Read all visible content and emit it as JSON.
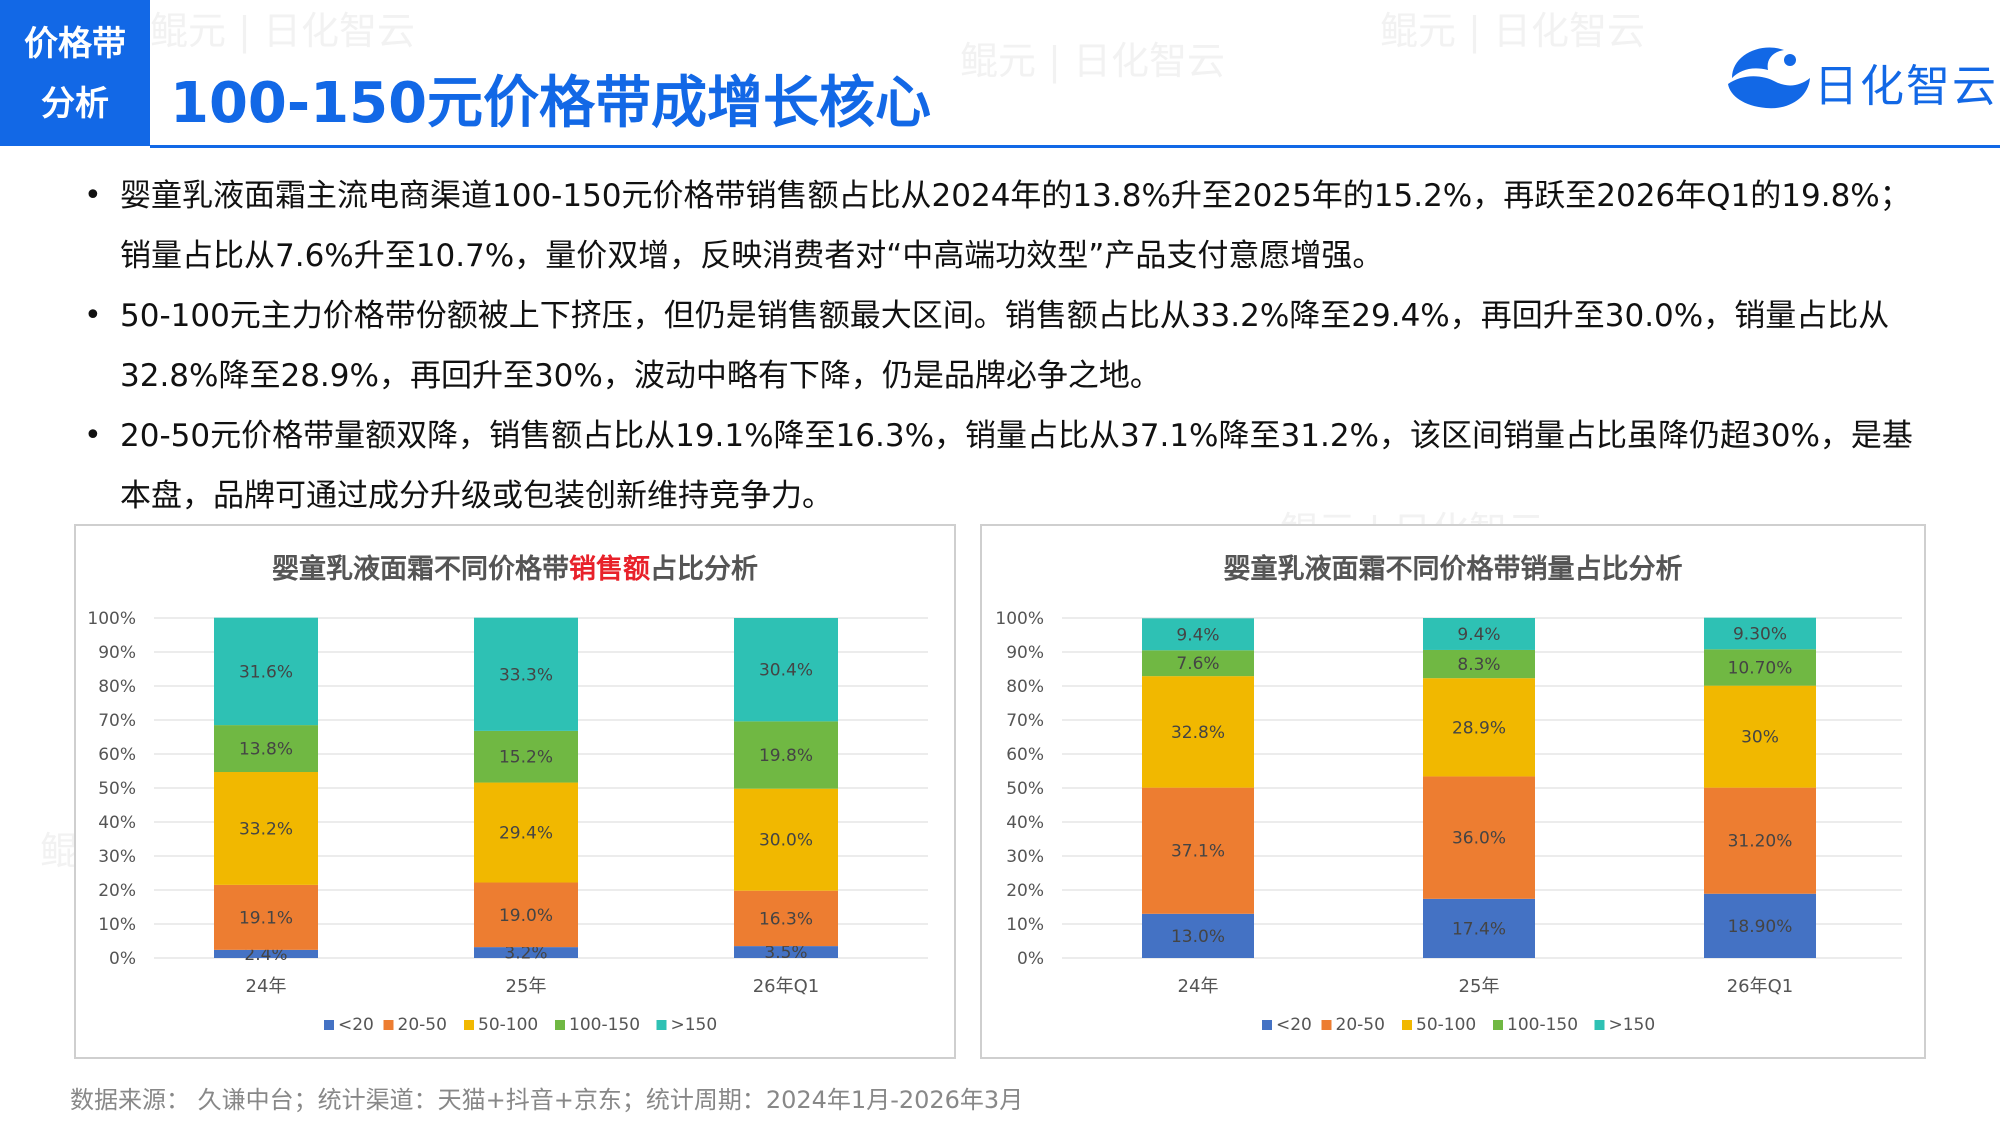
{
  "header": {
    "tag_line1": "价格带",
    "tag_line2": "分析",
    "title": "100-150元价格带成增长核心",
    "logo_name": "日化智云"
  },
  "watermark": "鲲元 | 日化智云",
  "bullets": [
    "婴童乳液面霜主流电商渠道100-150元价格带销售额占比从2024年的13.8%升至2025年的15.2%，再跃至2026年Q1的19.8%；销量占比从7.6%升至10.7%，量价双增，反映消费者对“中高端功效型”产品支付意愿增强。",
    "50-100元主力价格带份额被上下挤压，但仍是销售额最大区间。销售额占比从33.2%降至29.4%，再回升至30.0%，销量占比从32.8%降至28.9%，再回升至30%，波动中略有下降，仍是品牌必争之地。",
    "20-50元价格带量额双降，销售额占比从19.1%降至16.3%，销量占比从37.1%降至31.2%，该区间销量占比虽降仍超30%，是基本盘，品牌可通过成分升级或包装创新维持竞争力。"
  ],
  "source": "数据来源： 久谦中台；统计渠道：天猫+抖音+京东；统计周期：2024年1月-2026年3月",
  "colors": {
    "accent": "#1268e6",
    "highlight": "#e8212a",
    "series": [
      "#4472c4",
      "#ed7d31",
      "#f1b800",
      "#70b843",
      "#2ec1b4"
    ]
  },
  "chart_data": [
    {
      "type": "bar",
      "stacked": true,
      "title_parts": [
        "婴童乳液面霜不同价格带",
        "销售额",
        "占比分析"
      ],
      "categories": [
        "24年",
        "25年",
        "26年Q1"
      ],
      "y_ticks": [
        "0%",
        "10%",
        "20%",
        "30%",
        "40%",
        "50%",
        "60%",
        "70%",
        "80%",
        "90%",
        "100%"
      ],
      "ylim": [
        0,
        100
      ],
      "legend_position": "bottom",
      "series": [
        {
          "name": "<20",
          "values": [
            2.4,
            3.2,
            3.5
          ],
          "labels": [
            "2.4%",
            "3.2%",
            "3.5%"
          ]
        },
        {
          "name": "20-50",
          "values": [
            19.1,
            19.0,
            16.3
          ],
          "labels": [
            "19.1%",
            "19.0%",
            "16.3%"
          ]
        },
        {
          "name": "50-100",
          "values": [
            33.2,
            29.4,
            30.0
          ],
          "labels": [
            "33.2%",
            "29.4%",
            "30.0%"
          ]
        },
        {
          "name": "100-150",
          "values": [
            13.8,
            15.2,
            19.8
          ],
          "labels": [
            "13.8%",
            "15.2%",
            "19.8%"
          ]
        },
        {
          "name": ">150",
          "values": [
            31.6,
            33.3,
            30.4
          ],
          "labels": [
            "31.6%",
            "33.3%",
            "30.4%"
          ]
        }
      ]
    },
    {
      "type": "bar",
      "stacked": true,
      "title_parts": [
        "婴童乳液面霜不同价格带销量占比分析"
      ],
      "categories": [
        "24年",
        "25年",
        "26年Q1"
      ],
      "y_ticks": [
        "0%",
        "10%",
        "20%",
        "30%",
        "40%",
        "50%",
        "60%",
        "70%",
        "80%",
        "90%",
        "100%"
      ],
      "ylim": [
        0,
        100
      ],
      "legend_position": "bottom",
      "series": [
        {
          "name": "<20",
          "values": [
            13.0,
            17.4,
            18.9
          ],
          "labels": [
            "13.0%",
            "17.4%",
            "18.90%"
          ]
        },
        {
          "name": "20-50",
          "values": [
            37.1,
            36.0,
            31.2
          ],
          "labels": [
            "37.1%",
            "36.0%",
            "31.20%"
          ]
        },
        {
          "name": "50-100",
          "values": [
            32.8,
            28.9,
            30.0
          ],
          "labels": [
            "32.8%",
            "28.9%",
            "30%"
          ]
        },
        {
          "name": "100-150",
          "values": [
            7.6,
            8.3,
            10.7
          ],
          "labels": [
            "7.6%",
            "8.3%",
            "10.70%"
          ]
        },
        {
          "name": ">150",
          "values": [
            9.4,
            9.4,
            9.3
          ],
          "labels": [
            "9.4%",
            "9.4%",
            "9.30%"
          ]
        }
      ]
    }
  ]
}
